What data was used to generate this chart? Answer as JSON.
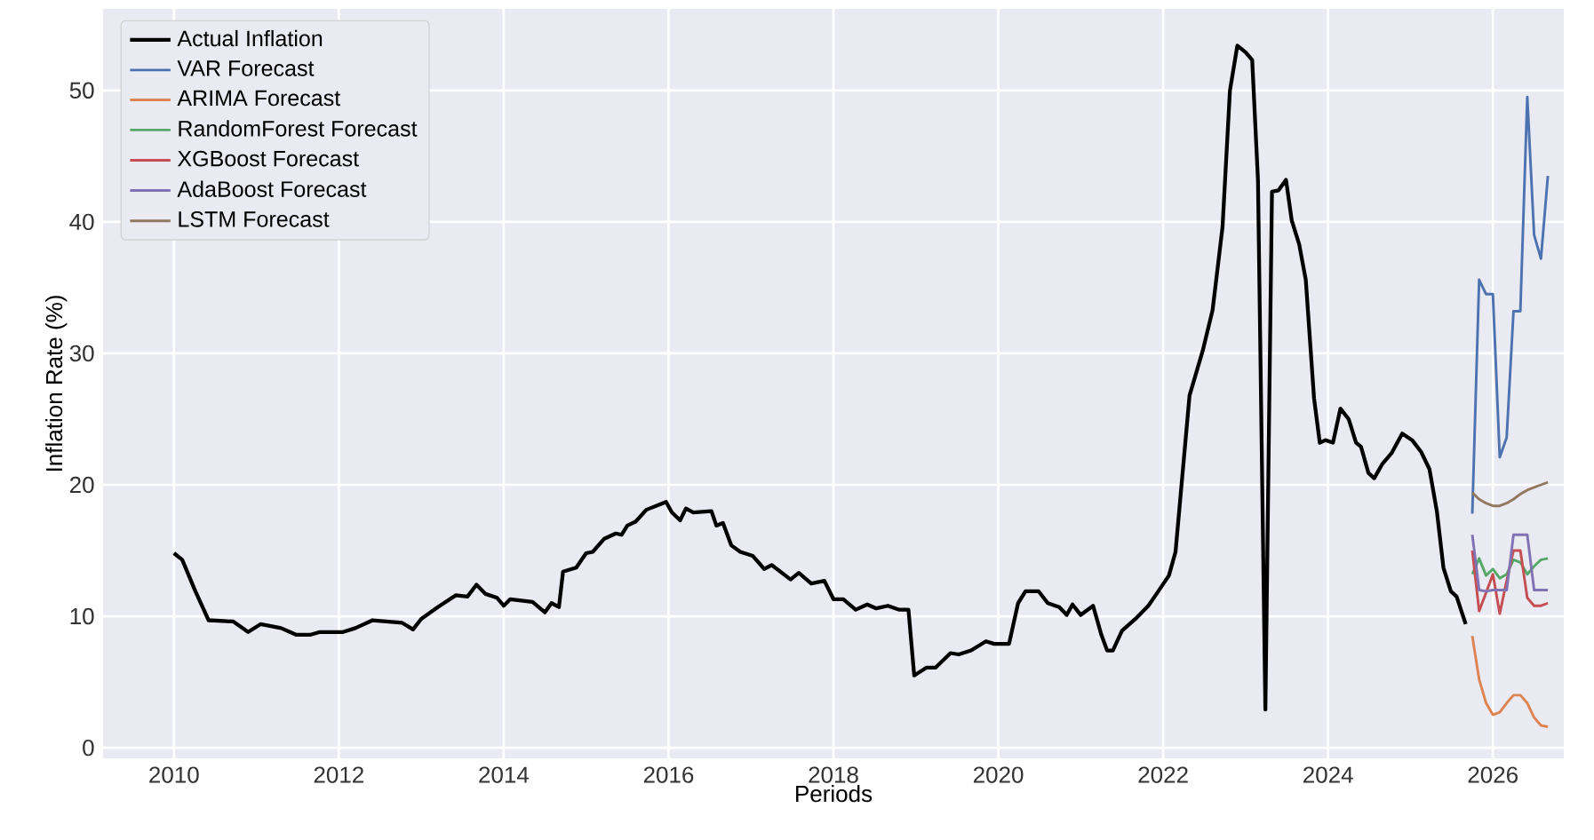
{
  "chart_data": {
    "type": "line",
    "xlabel": "Periods",
    "ylabel": "Inflation Rate (%)",
    "xlim": [
      2009.14,
      2026.86
    ],
    "ylim": [
      -0.8,
      56.2
    ],
    "xticks": [
      2010,
      2012,
      2014,
      2016,
      2018,
      2020,
      2022,
      2024,
      2026
    ],
    "yticks": [
      0,
      10,
      20,
      30,
      40,
      50
    ],
    "grid": true,
    "legend": "top left",
    "series": [
      {
        "name": "Actual Inflation",
        "color": "#000000",
        "x": [
          2010.0,
          2010.1,
          2010.26,
          2010.42,
          2010.72,
          2010.9,
          2011.05,
          2011.3,
          2011.48,
          2011.66,
          2011.77,
          2012.05,
          2012.2,
          2012.41,
          2012.77,
          2012.9,
          2013.0,
          2013.2,
          2013.42,
          2013.56,
          2013.67,
          2013.78,
          2013.92,
          2014.0,
          2014.08,
          2014.35,
          2014.5,
          2014.58,
          2014.67,
          2014.72,
          2014.88,
          2015.0,
          2015.08,
          2015.22,
          2015.36,
          2015.43,
          2015.5,
          2015.6,
          2015.73,
          2015.97,
          2016.04,
          2016.14,
          2016.21,
          2016.3,
          2016.52,
          2016.58,
          2016.66,
          2016.76,
          2016.87,
          2017.02,
          2017.16,
          2017.25,
          2017.48,
          2017.58,
          2017.73,
          2017.89,
          2018.0,
          2018.12,
          2018.27,
          2018.41,
          2018.52,
          2018.66,
          2018.8,
          2018.91,
          2018.98,
          2019.13,
          2019.24,
          2019.42,
          2019.52,
          2019.67,
          2019.85,
          2019.95,
          2020.13,
          2020.24,
          2020.33,
          2020.49,
          2020.6,
          2020.74,
          2020.83,
          2020.9,
          2021.0,
          2021.15,
          2021.25,
          2021.32,
          2021.39,
          2021.5,
          2021.68,
          2021.82,
          2021.93,
          2022.07,
          2022.15,
          2022.32,
          2022.48,
          2022.6,
          2022.72,
          2022.81,
          2022.9,
          2023.0,
          2023.08,
          2023.15,
          2023.24,
          2023.32,
          2023.4,
          2023.49,
          2023.56,
          2023.65,
          2023.73,
          2023.83,
          2023.9,
          2023.97,
          2024.06,
          2024.15,
          2024.25,
          2024.34,
          2024.4,
          2024.49,
          2024.56,
          2024.66,
          2024.77,
          2024.9,
          2025.02,
          2025.13,
          2025.23,
          2025.32,
          2025.4,
          2025.49,
          2025.56,
          2025.67
        ],
        "values": [
          14.8,
          14.3,
          11.9,
          9.7,
          9.6,
          8.8,
          9.4,
          9.1,
          8.6,
          8.6,
          8.8,
          8.8,
          9.1,
          9.7,
          9.5,
          9.0,
          9.8,
          10.7,
          11.6,
          11.5,
          12.4,
          11.7,
          11.4,
          10.8,
          11.3,
          11.1,
          10.3,
          11.0,
          10.7,
          13.4,
          13.7,
          14.8,
          14.9,
          15.9,
          16.3,
          16.2,
          16.9,
          17.2,
          18.1,
          18.7,
          17.9,
          17.3,
          18.2,
          17.9,
          18.0,
          16.9,
          17.1,
          15.4,
          14.9,
          14.6,
          13.6,
          13.9,
          12.8,
          13.3,
          12.5,
          12.7,
          11.3,
          11.3,
          10.5,
          10.9,
          10.6,
          10.8,
          10.5,
          10.5,
          5.5,
          6.1,
          6.1,
          7.2,
          7.1,
          7.4,
          8.1,
          7.9,
          7.9,
          11.0,
          11.9,
          11.9,
          11.0,
          10.7,
          10.1,
          10.9,
          10.1,
          10.8,
          8.6,
          7.4,
          7.4,
          8.9,
          9.9,
          10.8,
          11.8,
          13.1,
          14.9,
          26.8,
          30.2,
          33.3,
          39.6,
          50.0,
          53.4,
          52.9,
          52.3,
          43.2,
          2.9,
          42.3,
          42.4,
          43.2,
          40.1,
          38.3,
          35.6,
          26.6,
          23.2,
          23.4,
          23.2,
          25.8,
          25.0,
          23.2,
          22.9,
          20.9,
          20.5,
          21.6,
          22.4,
          23.9,
          23.4,
          22.5,
          21.2,
          18.0,
          13.7,
          11.9,
          11.5,
          9.4
        ]
      },
      {
        "name": "VAR Forecast",
        "color": "#4c72b0",
        "x": [
          2025.75,
          2025.833,
          2025.917,
          2026.0,
          2026.083,
          2026.167,
          2026.25,
          2026.333,
          2026.417,
          2026.5,
          2026.583,
          2026.667
        ],
        "values": [
          17.8,
          35.6,
          34.5,
          34.5,
          22.1,
          23.6,
          33.2,
          33.2,
          49.5,
          39.0,
          37.2,
          43.5
        ]
      },
      {
        "name": "ARIMA Forecast",
        "color": "#dd8452",
        "x": [
          2025.75,
          2025.833,
          2025.917,
          2026.0,
          2026.083,
          2026.167,
          2026.25,
          2026.333,
          2026.417,
          2026.5,
          2026.583,
          2026.667
        ],
        "values": [
          8.5,
          5.2,
          3.4,
          2.5,
          2.7,
          3.4,
          4.0,
          4.0,
          3.4,
          2.3,
          1.7,
          1.6
        ]
      },
      {
        "name": "RandomForest Forecast",
        "color": "#55a868",
        "x": [
          2025.75,
          2025.833,
          2025.917,
          2026.0,
          2026.083,
          2026.167,
          2026.25,
          2026.333,
          2026.417,
          2026.5,
          2026.583,
          2026.667
        ],
        "values": [
          13.2,
          14.4,
          13.1,
          13.6,
          12.9,
          13.2,
          14.3,
          14.1,
          13.2,
          13.8,
          14.3,
          14.4
        ]
      },
      {
        "name": "XGBoost Forecast",
        "color": "#c44e52",
        "x": [
          2025.75,
          2025.833,
          2025.917,
          2026.0,
          2026.083,
          2026.167,
          2026.25,
          2026.333,
          2026.417,
          2026.5,
          2026.583,
          2026.667
        ],
        "values": [
          15.0,
          10.4,
          11.8,
          13.2,
          10.2,
          12.7,
          15.0,
          15.0,
          11.4,
          10.8,
          10.8,
          11.0
        ]
      },
      {
        "name": "AdaBoost Forecast",
        "color": "#8172b3",
        "x": [
          2025.75,
          2025.833,
          2025.917,
          2026.0,
          2026.083,
          2026.167,
          2026.25,
          2026.333,
          2026.417,
          2026.5,
          2026.583,
          2026.667
        ],
        "values": [
          16.2,
          12.0,
          11.9,
          12.0,
          12.0,
          12.0,
          16.2,
          16.2,
          16.2,
          12.0,
          12.0,
          12.0
        ]
      },
      {
        "name": "LSTM Forecast",
        "color": "#937860",
        "x": [
          2025.75,
          2025.833,
          2025.917,
          2026.0,
          2026.083,
          2026.167,
          2026.25,
          2026.333,
          2026.417,
          2026.5,
          2026.583,
          2026.667
        ],
        "values": [
          19.4,
          18.9,
          18.6,
          18.4,
          18.4,
          18.6,
          18.9,
          19.3,
          19.6,
          19.8,
          20.0,
          20.2
        ]
      }
    ]
  }
}
